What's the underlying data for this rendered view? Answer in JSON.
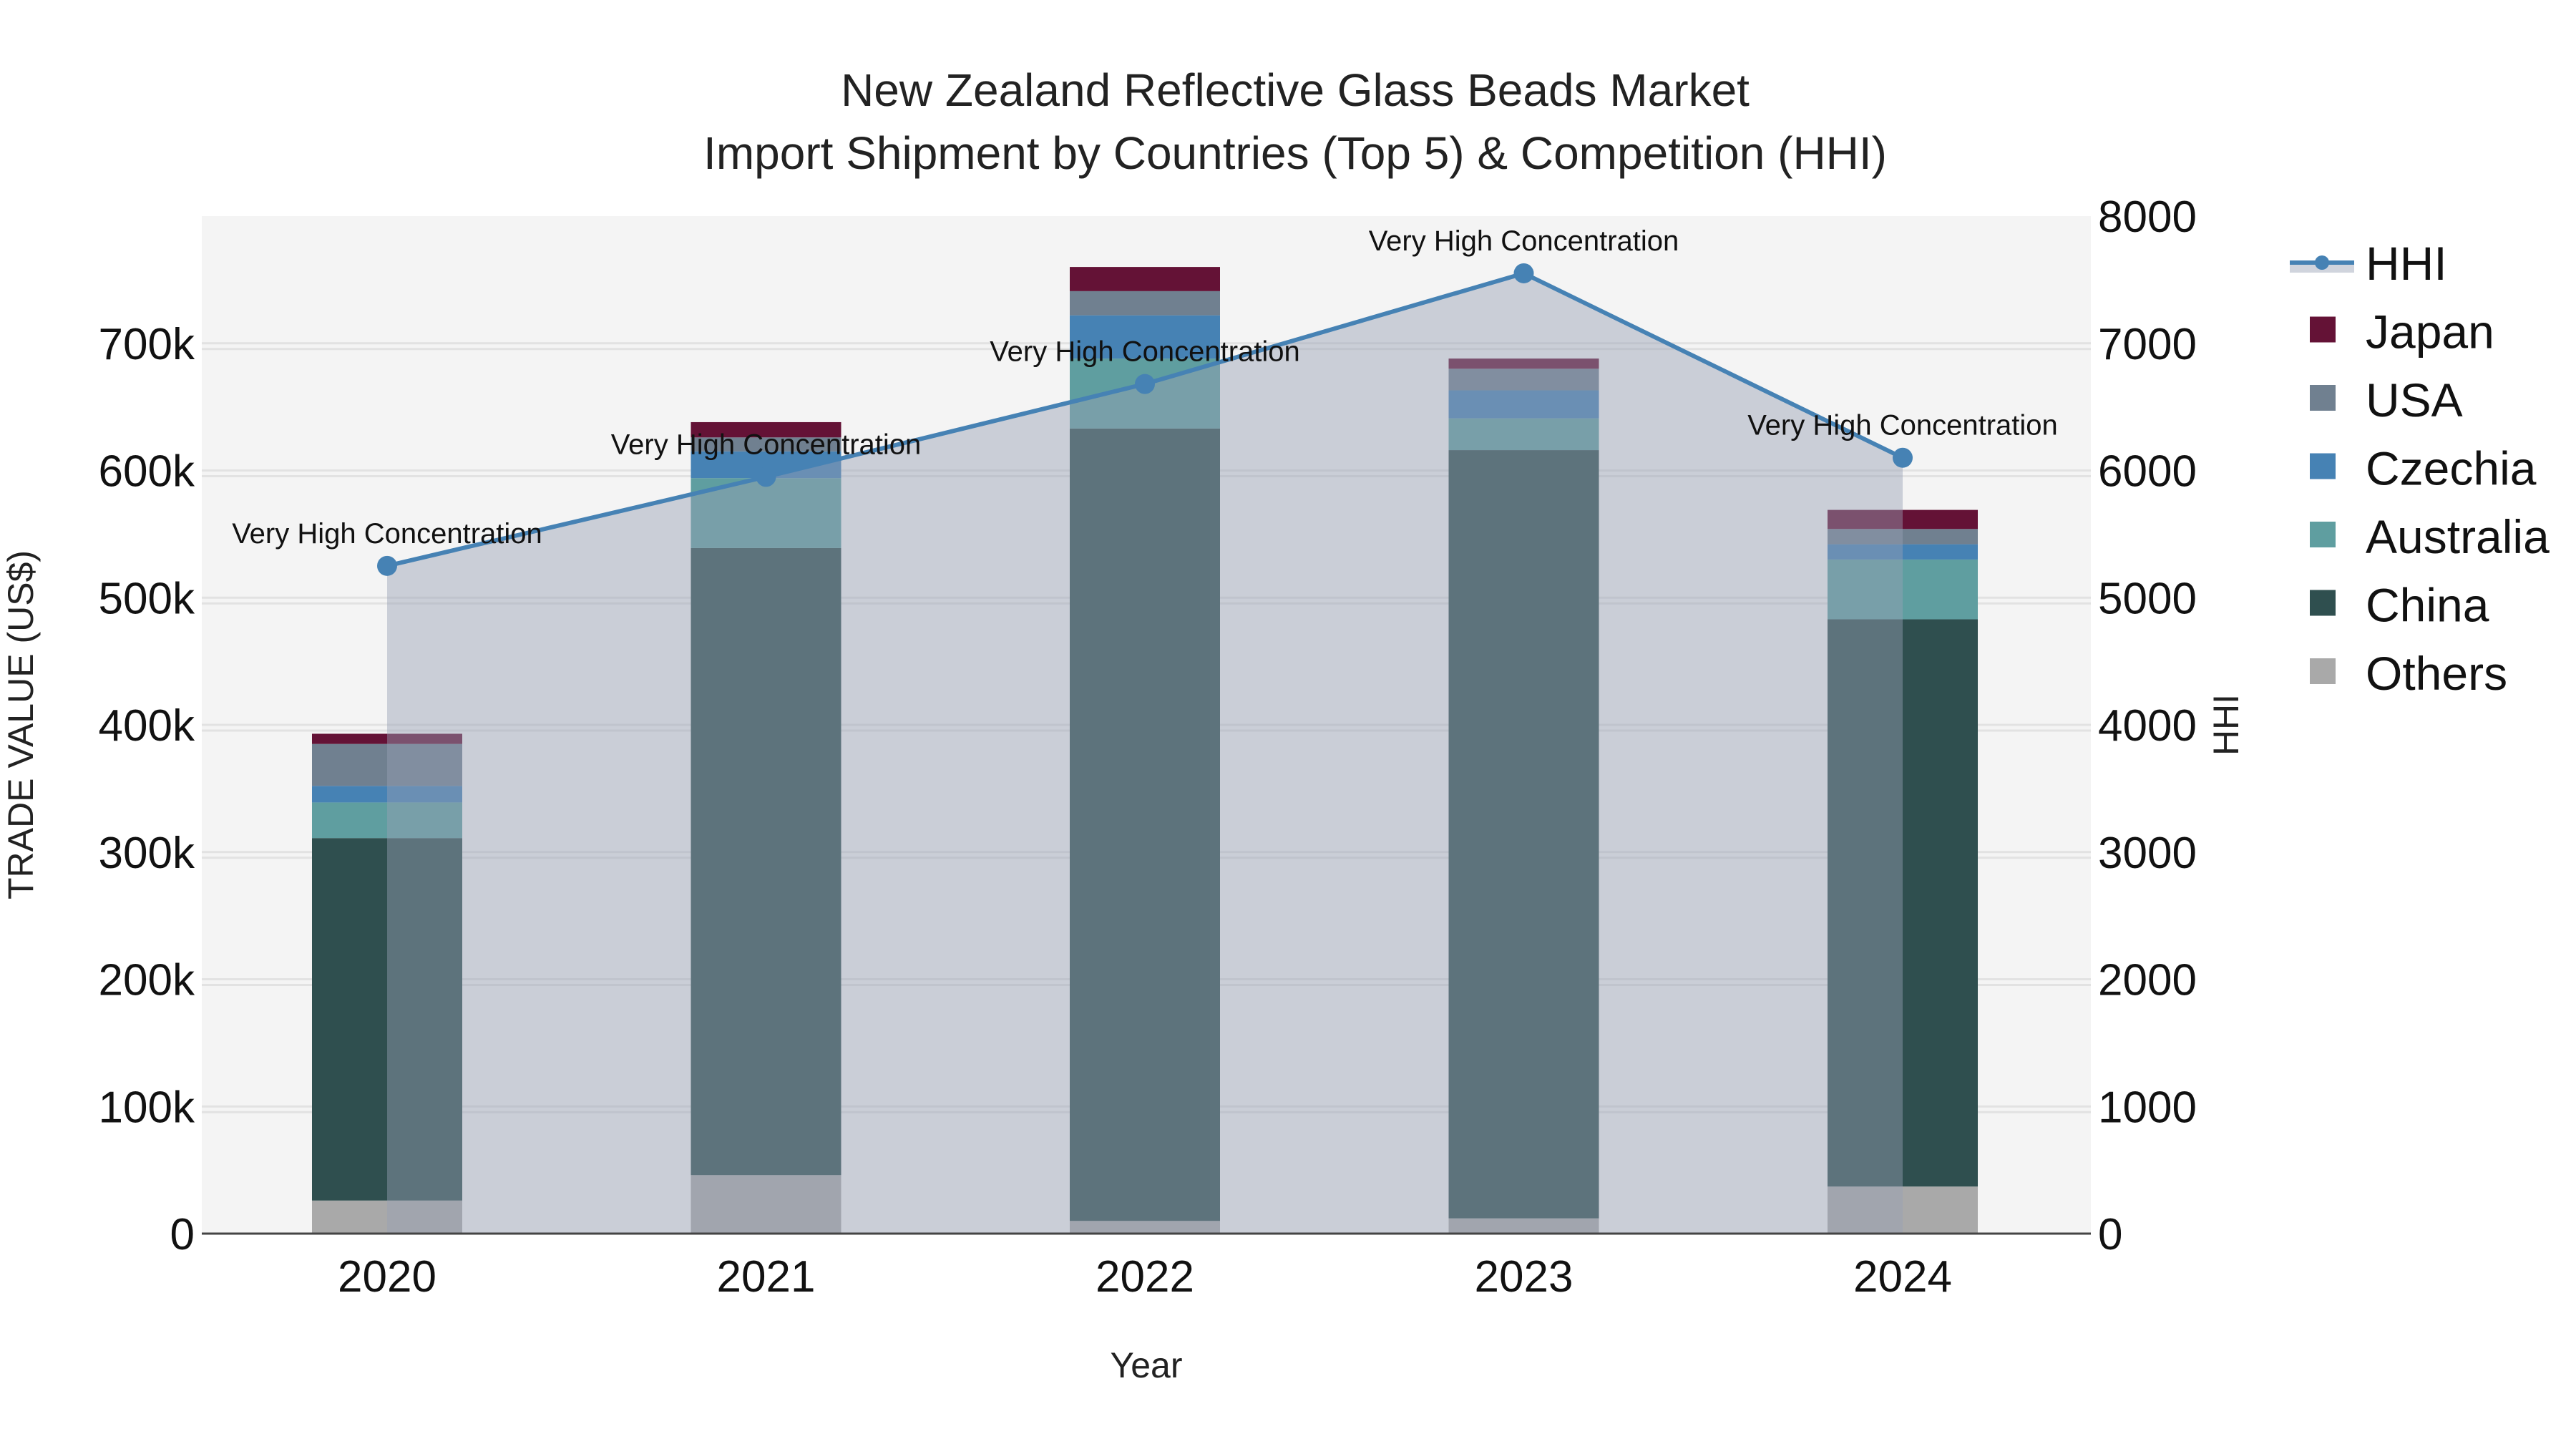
{
  "chart_data": {
    "type": "bar",
    "subtype": "stacked bar + line (dual axis)",
    "title": "New Zealand Reflective Glass Beads Market",
    "subtitle": "Import Shipment by Countries (Top 5) & Competition (HHI)",
    "xlabel": "Year",
    "ylabel": "TRADE VALUE (US$)",
    "y2label": "HHI",
    "categories": [
      "2020",
      "2021",
      "2022",
      "2023",
      "2024"
    ],
    "ylim": [
      0,
      800000
    ],
    "y_ticks": [
      0,
      100000,
      200000,
      300000,
      400000,
      500000,
      600000,
      700000
    ],
    "y_tick_labels": [
      "0",
      "100k",
      "200k",
      "300k",
      "400k",
      "500k",
      "600k",
      "700k"
    ],
    "y2lim": [
      0,
      8000
    ],
    "y2_ticks": [
      0,
      1000,
      2000,
      3000,
      4000,
      5000,
      6000,
      7000,
      8000
    ],
    "y2_tick_labels": [
      "0",
      "1000",
      "2000",
      "3000",
      "4000",
      "5000",
      "6000",
      "7000",
      "8000"
    ],
    "grid": true,
    "legend_position": "right",
    "series": [
      {
        "name": "Others",
        "color": "#A9A9A9",
        "values": [
          26000,
          46000,
          10000,
          12000,
          37000
        ]
      },
      {
        "name": "China",
        "color": "#2F4F4F",
        "values": [
          285000,
          493000,
          623000,
          604000,
          446000
        ]
      },
      {
        "name": "Australia",
        "color": "#5F9EA0",
        "values": [
          28000,
          55000,
          55000,
          25000,
          47000
        ]
      },
      {
        "name": "Czechia",
        "color": "#4682B4",
        "values": [
          13000,
          21000,
          34000,
          22000,
          12000
        ]
      },
      {
        "name": "USA",
        "color": "#708090",
        "values": [
          33000,
          11000,
          19000,
          17000,
          12000
        ]
      },
      {
        "name": "Japan",
        "color": "#641236",
        "values": [
          8000,
          12000,
          19000,
          8000,
          15000
        ]
      }
    ],
    "line_series": {
      "name": "HHI",
      "axis": "y2",
      "color": "#4682B4",
      "fill": "rgba(150,160,180,0.45)",
      "values": [
        5250,
        5950,
        6680,
        7550,
        6100
      ],
      "annotations": [
        "Very High Concentration",
        "Very High Concentration",
        "Very High Concentration",
        "Very High Concentration",
        "Very High Concentration"
      ]
    }
  },
  "legend": {
    "items": [
      {
        "label": "HHI",
        "kind": "line",
        "color": "#4682B4"
      },
      {
        "label": "Japan",
        "kind": "box",
        "color": "#641236"
      },
      {
        "label": "USA",
        "kind": "box",
        "color": "#708090"
      },
      {
        "label": "Czechia",
        "kind": "box",
        "color": "#4682B4"
      },
      {
        "label": "Australia",
        "kind": "box",
        "color": "#5F9EA0"
      },
      {
        "label": "China",
        "kind": "box",
        "color": "#2F4F4F"
      },
      {
        "label": "Others",
        "kind": "box",
        "color": "#A9A9A9"
      }
    ]
  },
  "colors": {
    "plot_bg": "#F4F4F4",
    "grid": "#E2E2E2",
    "axis_line": "#444444"
  }
}
